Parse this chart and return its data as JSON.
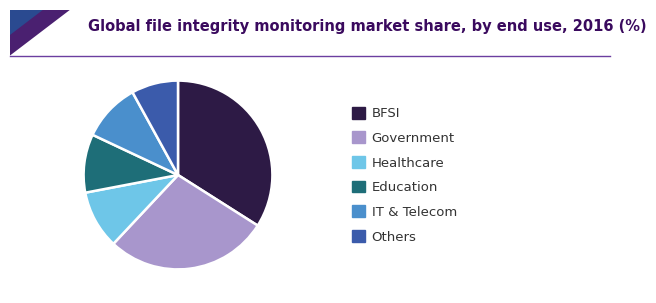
{
  "title": "Global file integrity monitoring market share, by end use, 2016 (%)",
  "labels": [
    "BFSI",
    "Government",
    "Healthcare",
    "Education",
    "IT & Telecom",
    "Others"
  ],
  "sizes": [
    34,
    28,
    10,
    10,
    10,
    8
  ],
  "colors": [
    "#2d1a45",
    "#a896cc",
    "#6ec6e8",
    "#1e6e78",
    "#4a8fcc",
    "#3b5bab"
  ],
  "title_fontsize": 10.5,
  "title_color": "#3a0a5e",
  "header_line_color": "#6b3fa0",
  "corner_color1": "#4a2070",
  "corner_color2": "#2a4a90",
  "background_color": "#ffffff",
  "legend_fontsize": 9.5,
  "legend_label_color": "#333333"
}
